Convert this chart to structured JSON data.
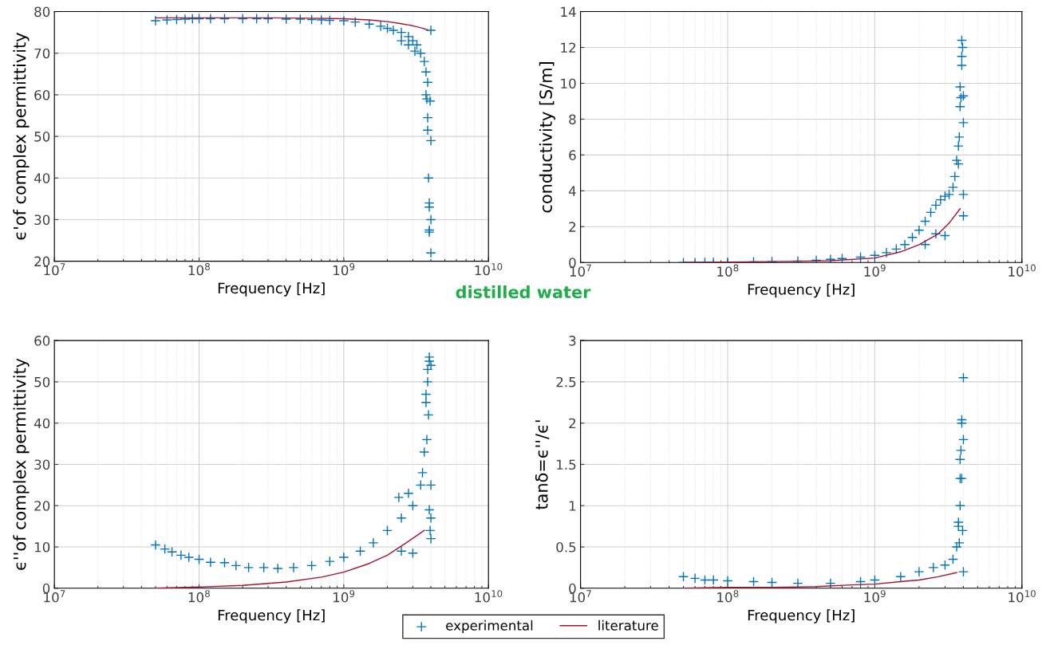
{
  "chart_data": [
    {
      "type": "scatter",
      "xlabel": "Frequency [Hz]",
      "ylabel": "ϵ'of complex permittivity",
      "log": "x",
      "grid": true,
      "xlim": [
        10000000.0,
        10000000000.0
      ],
      "xticks": [
        {
          "value": 10000000.0,
          "label": "10$^{7}$"
        },
        {
          "value": 100000000.0,
          "label": "10$^{8}$"
        },
        {
          "value": 1000000000.0,
          "label": "10$^{9}$"
        },
        {
          "value": 10000000000.0,
          "label": "10$^{10}$"
        }
      ],
      "ylim": [
        20,
        80
      ],
      "yticks": [
        20,
        30,
        40,
        50,
        60,
        70,
        80
      ],
      "annotations": [
        "distilled water"
      ],
      "legend": "bottom",
      "series": [
        {
          "name": "experimental",
          "marker": "cross",
          "color": "#0072bd",
          "x": [
            50000000.0,
            60000000.0,
            70000000.0,
            80000000.0,
            90000000.0,
            100000000.0,
            120000000.0,
            150000000.0,
            200000000.0,
            250000000.0,
            300000000.0,
            400000000.0,
            500000000.0,
            600000000.0,
            700000000.0,
            800000000.0,
            1000000000.0,
            1200000000.0,
            1500000000.0,
            1800000000.0,
            2000000000.0,
            2200000000.0,
            2500000000.0,
            2800000000.0,
            3000000000.0,
            3200000000.0,
            3400000000.0,
            2500000000.0,
            2800000000.0,
            3100000000.0,
            3600000000.0,
            3700000000.0,
            3700000000.0,
            3750000000.0,
            3800000000.0,
            3800000000.0,
            3800000000.0,
            3850000000.0,
            3900000000.0,
            3900000000.0,
            3900000000.0,
            3900000000.0,
            3950000000.0,
            4000000000.0,
            4000000000.0,
            4000000000.0,
            4000000000.0
          ],
          "values": [
            77.8,
            78.0,
            78.1,
            78.2,
            78.3,
            78.3,
            78.3,
            78.3,
            78.3,
            78.3,
            78.3,
            78.2,
            78.2,
            78.1,
            78.0,
            77.9,
            77.8,
            77.5,
            77.0,
            76.5,
            76.0,
            75.5,
            75.0,
            74.0,
            73.0,
            72.0,
            70.0,
            73.0,
            72.0,
            70.5,
            68.0,
            65.5,
            60.0,
            59.0,
            63.0,
            54.5,
            51.5,
            40.0,
            34.0,
            33.0,
            27.5,
            27.0,
            58.5,
            49.0,
            30.0,
            22.0,
            75.5
          ]
        },
        {
          "name": "literature",
          "type": "line",
          "marker": "none",
          "color": "#a2142f",
          "x": [
            50000000.0,
            100000000.0,
            300000000.0,
            600000000.0,
            1000000000.0,
            1500000000.0,
            2000000000.0,
            2500000000.0,
            3000000000.0,
            3500000000.0,
            3800000000.0
          ],
          "values": [
            78.5,
            78.5,
            78.5,
            78.4,
            78.3,
            78.0,
            77.6,
            77.1,
            76.6,
            76.0,
            75.6
          ]
        }
      ]
    },
    {
      "type": "scatter",
      "xlabel": "Frequency [Hz]",
      "ylabel": "conductivity [S/m]",
      "log": "x",
      "grid": true,
      "xlim": [
        10000000.0,
        10000000000.0
      ],
      "xticks": [
        {
          "value": 10000000.0,
          "label": "10$^{7}$"
        },
        {
          "value": 100000000.0,
          "label": "10$^{8}$"
        },
        {
          "value": 1000000000.0,
          "label": "10$^{9}$"
        },
        {
          "value": 10000000000.0,
          "label": "10$^{10}$"
        }
      ],
      "ylim": [
        0,
        14
      ],
      "yticks": [
        0,
        2,
        4,
        6,
        8,
        10,
        12,
        14
      ],
      "series": [
        {
          "marker": "cross",
          "color": "#0072bd",
          "x": [
            50000000.0,
            60000000.0,
            70000000.0,
            80000000.0,
            100000000.0,
            150000000.0,
            200000000.0,
            300000000.0,
            400000000.0,
            500000000.0,
            600000000.0,
            800000000.0,
            1000000000.0,
            1200000000.0,
            1400000000.0,
            1600000000.0,
            1800000000.0,
            2000000000.0,
            2200000000.0,
            2400000000.0,
            2600000000.0,
            2800000000.0,
            3000000000.0,
            2200000000.0,
            2600000000.0,
            3000000000.0,
            3200000000.0,
            3400000000.0,
            3500000000.0,
            3600000000.0,
            3700000000.0,
            3700000000.0,
            3750000000.0,
            3800000000.0,
            3800000000.0,
            3850000000.0,
            3900000000.0,
            3900000000.0,
            3900000000.0,
            3950000000.0,
            4000000000.0,
            4000000000.0,
            4000000000.0,
            4000000000.0
          ],
          "values": [
            0.0,
            0.0,
            0.01,
            0.01,
            0.02,
            0.04,
            0.05,
            0.08,
            0.12,
            0.18,
            0.22,
            0.3,
            0.4,
            0.55,
            0.75,
            1.0,
            1.4,
            1.8,
            2.3,
            2.8,
            3.2,
            3.5,
            3.7,
            1.0,
            1.6,
            1.5,
            3.8,
            4.2,
            4.8,
            5.7,
            5.5,
            6.5,
            7.0,
            8.7,
            9.8,
            9.2,
            11.0,
            11.5,
            12.4,
            12.0,
            7.8,
            9.3,
            2.6,
            3.8
          ]
        },
        {
          "type": "line",
          "marker": "none",
          "color": "#a2142f",
          "x": [
            50000000.0,
            100000000.0,
            200000000.0,
            500000000.0,
            1000000000.0,
            1500000000.0,
            2000000000.0,
            2700000000.0,
            3200000000.0,
            3800000000.0
          ],
          "values": [
            0.01,
            0.02,
            0.05,
            0.1,
            0.25,
            0.6,
            1.0,
            1.6,
            2.2,
            3.0
          ]
        }
      ]
    },
    {
      "type": "scatter",
      "xlabel": "Frequency [Hz]",
      "ylabel": "ϵ''of complex permittivity",
      "log": "x",
      "grid": true,
      "xlim": [
        10000000.0,
        10000000000.0
      ],
      "xticks": [
        {
          "value": 10000000.0,
          "label": "10$^{7}$"
        },
        {
          "value": 100000000.0,
          "label": "10$^{8}$"
        },
        {
          "value": 1000000000.0,
          "label": "10$^{9}$"
        },
        {
          "value": 10000000000.0,
          "label": "10$^{10}$"
        }
      ],
      "ylim": [
        0,
        60
      ],
      "yticks": [
        0,
        10,
        20,
        30,
        40,
        50,
        60
      ],
      "series": [
        {
          "marker": "cross",
          "color": "#0072bd",
          "x": [
            50000000.0,
            58000000.0,
            65000000.0,
            75000000.0,
            85000000.0,
            100000000.0,
            120000000.0,
            150000000.0,
            180000000.0,
            220000000.0,
            280000000.0,
            350000000.0,
            450000000.0,
            600000000.0,
            800000000.0,
            1000000000.0,
            1300000000.0,
            1600000000.0,
            2000000000.0,
            2500000000.0,
            3000000000.0,
            2400000000.0,
            2500000000.0,
            2800000000.0,
            3000000000.0,
            3400000000.0,
            3500000000.0,
            3600000000.0,
            3700000000.0,
            3700000000.0,
            3750000000.0,
            3800000000.0,
            3800000000.0,
            3850000000.0,
            3900000000.0,
            3900000000.0,
            3900000000.0,
            3950000000.0,
            4000000000.0,
            4000000000.0,
            4000000000.0,
            4000000000.0
          ],
          "values": [
            10.5,
            9.5,
            8.8,
            8.0,
            7.5,
            7.0,
            6.3,
            6.2,
            5.5,
            5.0,
            5.0,
            4.8,
            5.0,
            5.5,
            6.5,
            7.5,
            9.0,
            11.0,
            14.0,
            17.0,
            20.0,
            22.0,
            9.0,
            23.0,
            8.5,
            25.0,
            28.0,
            33.0,
            45.0,
            47.0,
            36.0,
            50.0,
            53.0,
            42.0,
            55.0,
            56.0,
            19.0,
            14.0,
            17.0,
            54.0,
            25.0,
            12.0
          ]
        },
        {
          "type": "line",
          "marker": "none",
          "color": "#a2142f",
          "x": [
            50000000.0,
            100000000.0,
            200000000.0,
            400000000.0,
            700000000.0,
            1000000000.0,
            1500000000.0,
            2000000000.0,
            2700000000.0,
            3600000000.0
          ],
          "values": [
            0.0,
            0.3,
            0.7,
            1.5,
            2.7,
            3.9,
            6.0,
            8.0,
            11.0,
            14.0
          ]
        }
      ]
    },
    {
      "type": "scatter",
      "xlabel": "Frequency [Hz]",
      "ylabel": "tanδ=ϵ''/ϵ'",
      "log": "x",
      "grid": true,
      "xlim": [
        10000000.0,
        10000000000.0
      ],
      "xticks": [
        {
          "value": 10000000.0,
          "label": "10$^{7}$"
        },
        {
          "value": 100000000.0,
          "label": "10$^{8}$"
        },
        {
          "value": 1000000000.0,
          "label": "10$^{9}$"
        },
        {
          "value": 10000000000.0,
          "label": "10$^{10}$"
        }
      ],
      "ylim": [
        0,
        3
      ],
      "yticks": [
        0,
        0.5,
        1,
        1.5,
        2,
        2.5,
        3
      ],
      "series": [
        {
          "marker": "cross",
          "color": "#0072bd",
          "x": [
            50000000.0,
            60000000.0,
            70000000.0,
            80000000.0,
            100000000.0,
            150000000.0,
            200000000.0,
            300000000.0,
            500000000.0,
            800000000.0,
            1000000000.0,
            1500000000.0,
            2000000000.0,
            2500000000.0,
            3000000000.0,
            3400000000.0,
            3600000000.0,
            3700000000.0,
            3700000000.0,
            3750000000.0,
            3800000000.0,
            3800000000.0,
            3800000000.0,
            3850000000.0,
            3900000000.0,
            3900000000.0,
            3900000000.0,
            3950000000.0,
            4000000000.0,
            4000000000.0,
            4000000000.0
          ],
          "values": [
            0.14,
            0.12,
            0.1,
            0.1,
            0.09,
            0.08,
            0.07,
            0.06,
            0.06,
            0.08,
            0.1,
            0.14,
            0.2,
            0.25,
            0.28,
            0.35,
            0.5,
            0.75,
            0.8,
            0.55,
            1.0,
            1.33,
            1.56,
            1.67,
            2.0,
            2.04,
            1.33,
            0.7,
            1.8,
            2.55,
            0.2
          ]
        },
        {
          "type": "line",
          "marker": "none",
          "color": "#a2142f",
          "x": [
            50000000.0,
            100000000.0,
            200000000.0,
            400000000.0,
            700000000.0,
            1000000000.0,
            1500000000.0,
            2000000000.0,
            2700000000.0,
            3600000000.0
          ],
          "values": [
            0.0,
            0.01,
            0.01,
            0.02,
            0.04,
            0.05,
            0.08,
            0.1,
            0.14,
            0.19
          ]
        }
      ]
    }
  ]
}
